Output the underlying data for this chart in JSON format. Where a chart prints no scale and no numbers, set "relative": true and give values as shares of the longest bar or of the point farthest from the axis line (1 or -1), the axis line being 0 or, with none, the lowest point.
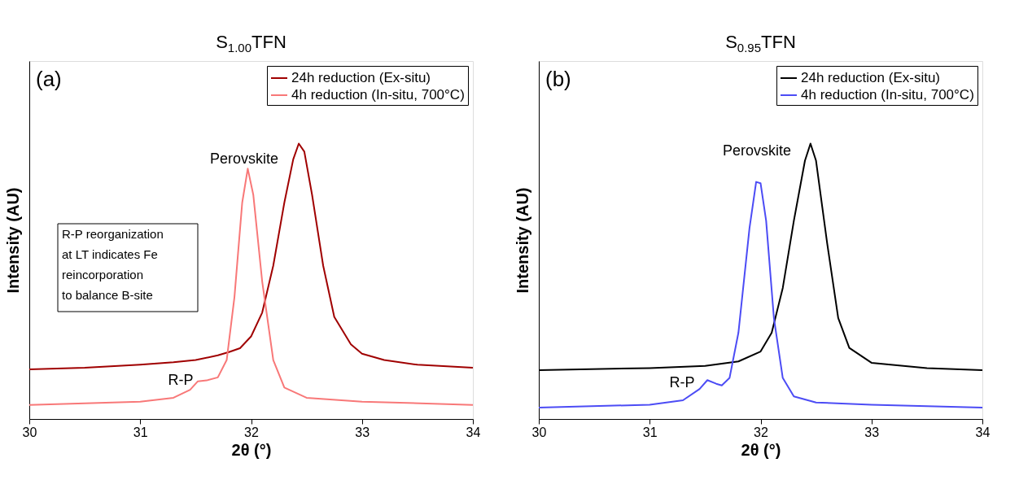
{
  "chart_data": [
    {
      "type": "line",
      "title": "S$_{1.00}$TFN",
      "xlabel": "2θ (°)",
      "ylabel": "Intensity (AU)",
      "relative": true,
      "xlim": [
        30,
        34
      ],
      "xticks": [
        30,
        31,
        32,
        33,
        34
      ],
      "grid": false,
      "legend": "top right",
      "tick_labels": "x",
      "series": [
        {
          "name": "24h reduction (Ex-situ)",
          "color": "#a00000",
          "x": [
            30,
            30.5,
            31,
            31.3,
            31.5,
            31.7,
            31.8,
            31.9,
            32.0,
            32.1,
            32.2,
            32.3,
            32.38,
            32.43,
            32.48,
            32.55,
            32.65,
            32.75,
            32.9,
            33.0,
            33.2,
            33.5,
            34
          ],
          "values": [
            0.18,
            0.186,
            0.197,
            0.206,
            0.214,
            0.231,
            0.243,
            0.257,
            0.3,
            0.386,
            0.557,
            0.786,
            0.943,
            1,
            0.971,
            0.814,
            0.557,
            0.371,
            0.271,
            0.237,
            0.214,
            0.197,
            0.186
          ]
        },
        {
          "name": "4h reduction (In-situ, 700°C)",
          "color": "#f87878",
          "x": [
            30,
            31,
            31.3,
            31.45,
            31.52,
            31.6,
            31.7,
            31.78,
            31.85,
            31.92,
            31.97,
            32.02,
            32.1,
            32.2,
            32.3,
            32.5,
            33,
            34
          ],
          "values": [
            0.051,
            0.063,
            0.077,
            0.106,
            0.137,
            0.14,
            0.151,
            0.214,
            0.443,
            0.786,
            0.909,
            0.814,
            0.5,
            0.214,
            0.114,
            0.077,
            0.063,
            0.051
          ]
        }
      ],
      "annotations": [
        "(a)",
        "Perovskite",
        "R-P",
        "R-P reorganization\nat LT indicates Fe\nreincorporation\nto balance B-site"
      ]
    },
    {
      "type": "line",
      "title": "S$_{0.95}$TFN",
      "xlabel": "2θ (°)",
      "ylabel": "Intensity (AU)",
      "relative": true,
      "xlim": [
        30,
        34
      ],
      "xticks": [
        30,
        31,
        32,
        33,
        34
      ],
      "grid": false,
      "legend": "top right",
      "tick_labels": "x",
      "series": [
        {
          "name": "24h reduction (Ex-situ)",
          "color": "#000000",
          "x": [
            30,
            31,
            31.5,
            31.8,
            32.0,
            32.1,
            32.2,
            32.3,
            32.4,
            32.45,
            32.5,
            32.6,
            32.7,
            32.8,
            33.0,
            33.5,
            34
          ],
          "values": [
            0.177,
            0.185,
            0.193,
            0.209,
            0.245,
            0.313,
            0.476,
            0.72,
            0.938,
            1,
            0.938,
            0.639,
            0.367,
            0.258,
            0.204,
            0.185,
            0.177
          ]
        },
        {
          "name": "4h reduction (In-situ, 700°C)",
          "color": "#4c4cf5",
          "x": [
            30,
            31,
            31.3,
            31.45,
            31.52,
            31.6,
            31.65,
            31.72,
            31.8,
            31.9,
            31.96,
            32.0,
            32.05,
            32.12,
            32.2,
            32.3,
            32.5,
            33,
            34
          ],
          "values": [
            0.041,
            0.052,
            0.068,
            0.109,
            0.141,
            0.128,
            0.122,
            0.149,
            0.313,
            0.693,
            0.861,
            0.856,
            0.72,
            0.367,
            0.149,
            0.082,
            0.06,
            0.052,
            0.041
          ]
        }
      ],
      "annotations": [
        "(b)",
        "Perovskite",
        "R-P"
      ]
    }
  ]
}
